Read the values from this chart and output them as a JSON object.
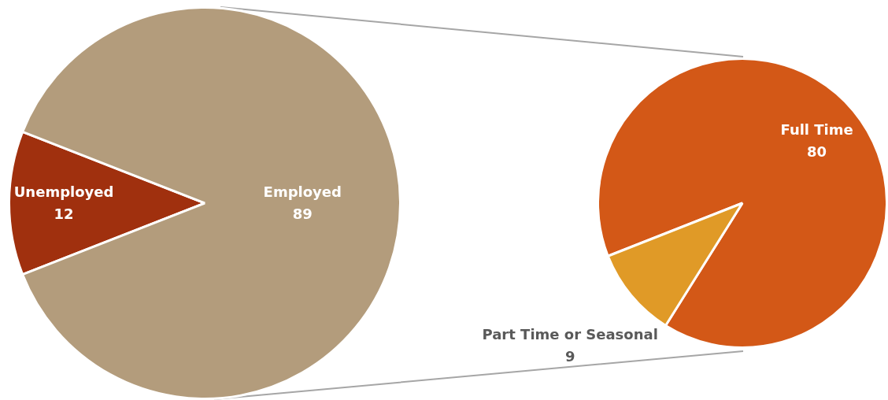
{
  "chart_data": [
    {
      "type": "pie",
      "categories": [
        "Unemployed",
        "Employed"
      ],
      "values": [
        12,
        89
      ],
      "colors": [
        "#a0300e",
        "#b39c7c"
      ],
      "data_labels": true
    },
    {
      "type": "pie",
      "categories": [
        "Full Time",
        "Part Time or Seasonal"
      ],
      "values": [
        80,
        9
      ],
      "colors": [
        "#d35817",
        "#e09a27"
      ],
      "data_labels": true
    }
  ]
}
